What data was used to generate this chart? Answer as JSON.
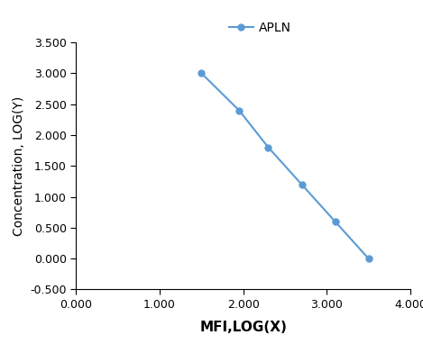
{
  "x": [
    1.5,
    1.95,
    2.3,
    2.7,
    3.1,
    3.5
  ],
  "y": [
    3.0,
    2.4,
    1.8,
    1.2,
    0.6,
    0.0
  ],
  "line_color": "#5B9BD5",
  "marker_color": "#5B9BD5",
  "marker_style": "o",
  "marker_size": 5,
  "line_width": 1.5,
  "legend_label": "APLN",
  "xlabel": "MFI,LOG(X)",
  "ylabel": "Concentration, LOG(Y)",
  "xlim": [
    0.0,
    4.0
  ],
  "ylim": [
    -0.5,
    3.5
  ],
  "xticks": [
    0.0,
    1.0,
    2.0,
    3.0,
    4.0
  ],
  "yticks": [
    -0.5,
    0.0,
    0.5,
    1.0,
    1.5,
    2.0,
    2.5,
    3.0,
    3.5
  ],
  "xlabel_fontsize": 11,
  "ylabel_fontsize": 10,
  "legend_fontsize": 10,
  "tick_fontsize": 9,
  "background_color": "#ffffff",
  "figsize": [
    4.69,
    3.92
  ],
  "dpi": 100
}
